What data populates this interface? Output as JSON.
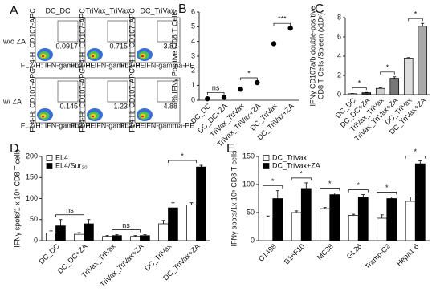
{
  "chart_data": [
    {
      "type": "flow",
      "panel": "A",
      "columns": [
        "DC_DC",
        "TriVax_TriVax",
        "DC_TriVax"
      ],
      "rows": [
        "w/o ZA",
        "w/ ZA"
      ],
      "xlabel": "FL2-H: IFN-gamma-PE",
      "ylabel": "FL4-H: CD107-APC",
      "gates": [
        [
          0.0917,
          0.715,
          3.87
        ],
        [
          0.145,
          1.23,
          4.88
        ]
      ]
    },
    {
      "type": "dot",
      "panel": "B",
      "ylabel": [
        "% IFNγ Positive CD8 T Cells"
      ],
      "categories": [
        "DC_DC",
        "DC_DC+ZA",
        "TriVax_TriVax",
        "TriVax_TriVax+ZA",
        "DC_TriVax",
        "DC_TriVax+ZA"
      ],
      "values": [
        0.1,
        0.2,
        0.75,
        1.2,
        3.85,
        4.9
      ],
      "color": "#000000",
      "ylim": [
        0,
        6
      ],
      "yticks": [
        0,
        1,
        2,
        3,
        4,
        5,
        6
      ],
      "annotations": [
        "ns",
        "*",
        "***"
      ]
    },
    {
      "type": "bar",
      "panel": "C",
      "ylabel": [
        "IFNγ CD107a/b double-positive",
        "CD8 T Cells /Spleen (x10⁶)"
      ],
      "categories": [
        "DC_DC",
        "DC_DC+ZA",
        "TriVax_TriVax",
        "TriVax_TriVax+ZA",
        "DC_TriVax",
        "DC_TriVax+ZA"
      ],
      "values": [
        0.1,
        0.2,
        0.65,
        1.7,
        3.8,
        7.1
      ],
      "errors": [
        0.02,
        0.03,
        0.05,
        0.15,
        0.05,
        0.3
      ],
      "colors": [
        "#ffffff",
        "#333333",
        "#cccccc",
        "#777777",
        "#dddddd",
        "#aaaaaa"
      ],
      "ylim": [
        0,
        8
      ],
      "yticks": [
        0,
        2,
        4,
        6,
        8
      ],
      "annotations": [
        "*",
        "*",
        "*"
      ]
    },
    {
      "type": "grouped",
      "panel": "D",
      "ylabel": [
        "IFNγ spots/1 x 10⁵ CD8 T cells"
      ],
      "categories": [
        "DC_DC",
        "DC_DC+ZA",
        "TriVax_TriVax",
        "TriVax_TriVax+ZA",
        "DC_TriVax",
        "DC_TriVax+ZA"
      ],
      "series": [
        {
          "name": "EL4",
          "color": "#ffffff",
          "values": [
            18,
            15,
            10,
            10,
            40,
            85
          ],
          "errors": [
            5,
            4,
            2,
            2,
            8,
            5
          ]
        },
        {
          "name": "EL4/Sur₂₀",
          "color": "#000000",
          "values": [
            35,
            40,
            12,
            12,
            78,
            175
          ],
          "errors": [
            15,
            10,
            2,
            2,
            12,
            4
          ]
        }
      ],
      "ylim": [
        0,
        200
      ],
      "yticks": [
        0,
        50,
        100,
        150,
        200
      ],
      "legend": "upper left",
      "annotations": [
        "ns",
        "ns",
        "*"
      ]
    },
    {
      "type": "grouped",
      "panel": "E",
      "ylabel": [
        "IFNγ spots/1x 10⁵ CD8 T cells"
      ],
      "categories": [
        "C1498",
        "B16F10",
        "MC38",
        "GL26",
        "Tramp-C2",
        "Hepa1-6"
      ],
      "series": [
        {
          "name": "DC_TriVax",
          "color": "#ffffff",
          "values": [
            42,
            50,
            57,
            45,
            40,
            70
          ],
          "errors": [
            2,
            3,
            2,
            2,
            6,
            8
          ]
        },
        {
          "name": "DC_TriVax+ZA",
          "color": "#000000",
          "values": [
            75,
            93,
            82,
            78,
            75,
            137
          ],
          "errors": [
            14,
            10,
            3,
            4,
            3,
            5
          ]
        }
      ],
      "ylim": [
        0,
        150
      ],
      "yticks": [
        0,
        50,
        100,
        150
      ],
      "legend": "upper left",
      "annotations": [
        "*",
        "*",
        "*",
        "*",
        "*",
        "*"
      ]
    }
  ]
}
